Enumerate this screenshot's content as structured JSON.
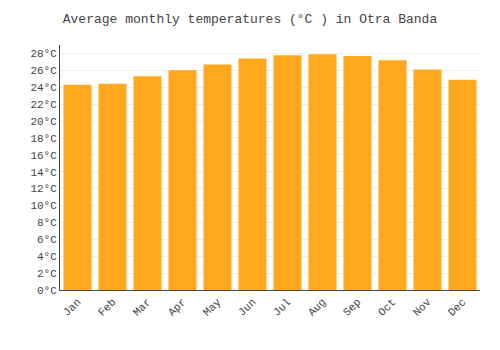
{
  "chart_data": {
    "type": "bar",
    "title": "Average monthly temperatures (°C ) in Otra Banda",
    "categories": [
      "Jan",
      "Feb",
      "Mar",
      "Apr",
      "May",
      "Jun",
      "Jul",
      "Aug",
      "Sep",
      "Oct",
      "Nov",
      "Dec"
    ],
    "values": [
      24.3,
      24.4,
      25.3,
      26.0,
      26.7,
      27.4,
      27.8,
      27.9,
      27.7,
      27.2,
      26.1,
      24.9
    ],
    "color": "#FFA820",
    "ylim": [
      0,
      29
    ],
    "yticks": [
      {
        "value": 0,
        "label": "0°C"
      },
      {
        "value": 2,
        "label": "2°C"
      },
      {
        "value": 4,
        "label": "4°C"
      },
      {
        "value": 6,
        "label": "6°C"
      },
      {
        "value": 8,
        "label": "8°C"
      },
      {
        "value": 10,
        "label": "10°C"
      },
      {
        "value": 12,
        "label": "12°C"
      },
      {
        "value": 14,
        "label": "14°C"
      },
      {
        "value": 16,
        "label": "16°C"
      },
      {
        "value": 18,
        "label": "18°C"
      },
      {
        "value": 20,
        "label": "20°C"
      },
      {
        "value": 22,
        "label": "22°C"
      },
      {
        "value": 24,
        "label": "24°C"
      },
      {
        "value": 26,
        "label": "26°C"
      },
      {
        "value": 28,
        "label": "28°C"
      }
    ],
    "grid": true
  }
}
